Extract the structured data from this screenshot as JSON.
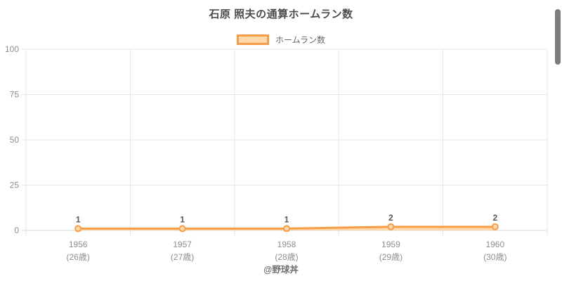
{
  "page": {
    "title": "石原 照夫の通算ホームラン数",
    "footer": "@野球丼"
  },
  "legend": {
    "label": "ホームラン数"
  },
  "chart_data": {
    "type": "line",
    "title": "石原 照夫の通算ホームラン数",
    "categories": [
      "1956",
      "1957",
      "1958",
      "1959",
      "1960"
    ],
    "category_sublabels": [
      "(26歳)",
      "(27歳)",
      "(28歳)",
      "(29歳)",
      "(30歳)"
    ],
    "series": [
      {
        "name": "ホームラン数",
        "values": [
          1,
          1,
          1,
          2,
          2
        ]
      }
    ],
    "xlabel": "",
    "ylabel": "",
    "ylim": [
      0,
      100
    ],
    "yticks": [
      0,
      25,
      50,
      75,
      100
    ],
    "grid": true,
    "legend_position": "top",
    "data_labels": true,
    "colors": {
      "line": "#f79d48",
      "area_fill": "#ffd8ab",
      "point_fill": "#ffd8ab",
      "gridline": "#e6e6e6",
      "zero_line": "#d9d9d9",
      "tick_label": "#8e8e8e",
      "data_label": "#575757",
      "title": "#4c4c4c"
    }
  }
}
